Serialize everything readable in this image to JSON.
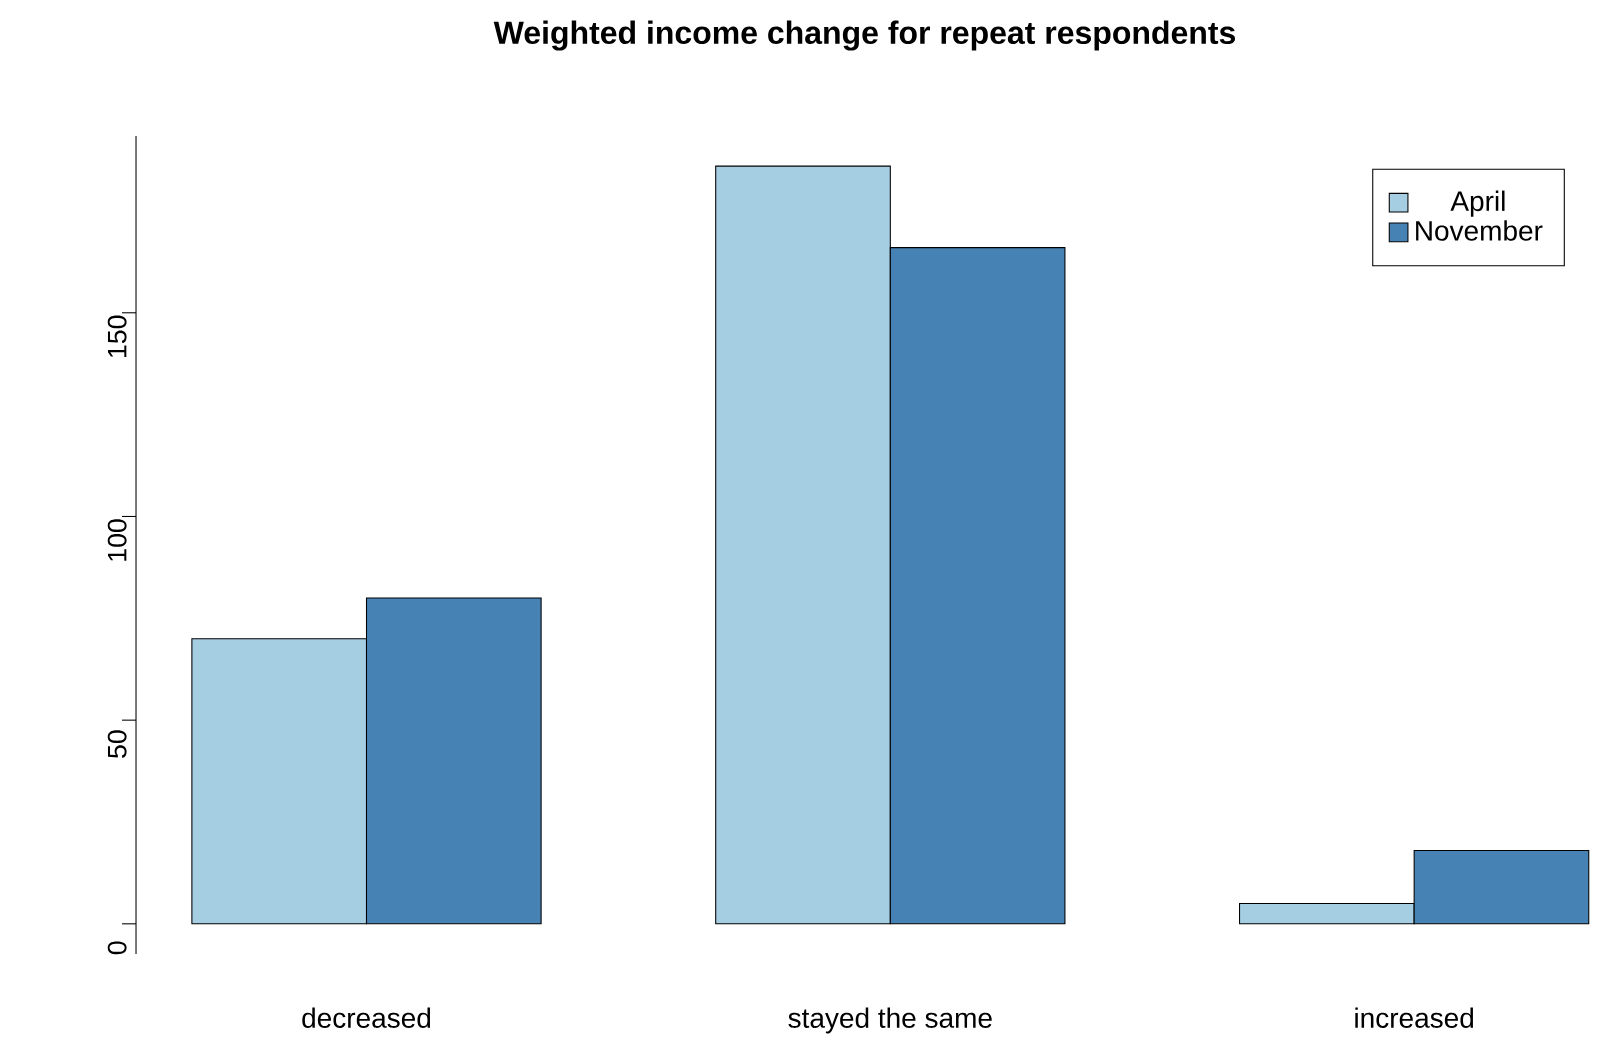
{
  "chart_data": {
    "type": "bar",
    "title": "Weighted income change for repeat respondents",
    "categories": [
      "decreased",
      "stayed the same",
      "increased"
    ],
    "series": [
      {
        "name": "April",
        "color": "#a6cee3",
        "values": [
          70,
          186,
          5
        ]
      },
      {
        "name": "November",
        "color": "#4682b4",
        "values": [
          80,
          166,
          18
        ]
      }
    ],
    "ylim": [
      -7.4,
      193.4
    ],
    "yticks": [
      0,
      50,
      100,
      150
    ],
    "legend": "top right"
  }
}
